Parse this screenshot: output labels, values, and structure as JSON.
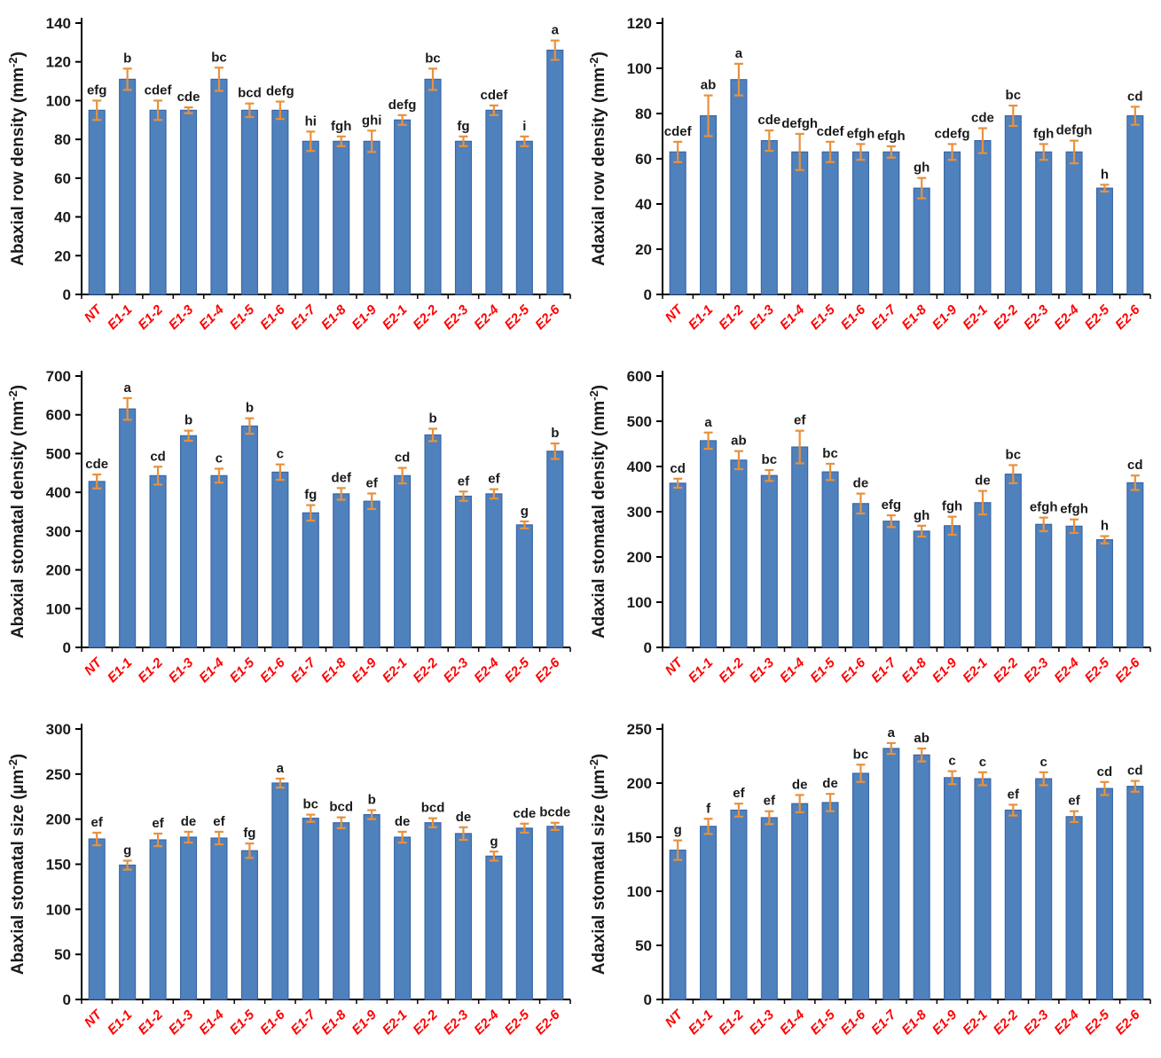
{
  "shared": {
    "categories": [
      "NT",
      "E1-1",
      "E1-2",
      "E1-3",
      "E1-4",
      "E1-5",
      "E1-6",
      "E1-7",
      "E1-8",
      "E1-9",
      "E2-1",
      "E2-2",
      "E2-3",
      "E2-4",
      "E2-5",
      "E2-6"
    ],
    "colors": {
      "bar_fill": "#4F81BD",
      "bar_edge": "#3A66A7",
      "error_bar": "#E8913C",
      "x_label": "#FF0000",
      "axis": "#000000",
      "text": "#1a1a1a"
    },
    "x_label_rotation_deg": -45,
    "grid": false,
    "legend": null
  },
  "chart_data": [
    {
      "type": "bar",
      "panel": "top-left",
      "ylabel": {
        "pre": "Abaxial row density (mm",
        "sup": "-2",
        "post": ")"
      },
      "ylim": [
        0,
        140
      ],
      "ytick_step": 20,
      "categories": [
        "NT",
        "E1-1",
        "E1-2",
        "E1-3",
        "E1-4",
        "E1-5",
        "E1-6",
        "E1-7",
        "E1-8",
        "E1-9",
        "E2-1",
        "E2-2",
        "E2-3",
        "E2-4",
        "E2-5",
        "E2-6"
      ],
      "values": [
        95,
        111,
        95,
        95,
        111,
        95,
        95,
        79,
        79,
        79,
        90,
        111,
        79,
        95,
        79,
        126
      ],
      "errors": [
        5,
        5.5,
        5,
        1.5,
        6,
        3.5,
        4.5,
        5,
        2.5,
        5.5,
        2.5,
        5.5,
        2.5,
        2.5,
        2.5,
        5
      ],
      "letters": [
        "efg",
        "b",
        "cdef",
        "cde",
        "bc",
        "bcd",
        "defg",
        "hi",
        "fgh",
        "ghi",
        "defg",
        "bc",
        "fg",
        "cdef",
        "i",
        "a"
      ]
    },
    {
      "type": "bar",
      "panel": "top-right",
      "ylabel": {
        "pre": "Adaxial row density (mm",
        "sup": "-2",
        "post": ")"
      },
      "ylim": [
        0,
        120
      ],
      "ytick_step": 20,
      "categories": [
        "NT",
        "E1-1",
        "E1-2",
        "E1-3",
        "E1-4",
        "E1-5",
        "E1-6",
        "E1-7",
        "E1-8",
        "E1-9",
        "E2-1",
        "E2-2",
        "E2-3",
        "E2-4",
        "E2-5",
        "E2-6"
      ],
      "values": [
        63,
        79,
        95,
        68,
        63,
        63,
        63,
        63,
        47,
        63,
        68,
        79,
        63,
        63,
        47,
        79
      ],
      "errors": [
        4.5,
        9,
        7,
        4.5,
        8,
        4.5,
        3.5,
        2.5,
        4.5,
        3.5,
        5.5,
        4.5,
        3.5,
        5,
        1.5,
        4
      ],
      "letters": [
        "cdef",
        "ab",
        "a",
        "cde",
        "defgh",
        "cdef",
        "efgh",
        "efgh",
        "gh",
        "cdefg",
        "cde",
        "bc",
        "fgh",
        "defgh",
        "h",
        "cd"
      ]
    },
    {
      "type": "bar",
      "panel": "middle-left",
      "ylabel": {
        "pre": "Abaxial stomatal density (mm",
        "sup": "-2",
        "post": ")"
      },
      "ylim": [
        0,
        700
      ],
      "ytick_step": 100,
      "categories": [
        "NT",
        "E1-1",
        "E1-2",
        "E1-3",
        "E1-4",
        "E1-5",
        "E1-6",
        "E1-7",
        "E1-8",
        "E1-9",
        "E2-1",
        "E2-2",
        "E2-3",
        "E2-4",
        "E2-5",
        "E2-6"
      ],
      "values": [
        428,
        615,
        443,
        546,
        443,
        571,
        452,
        347,
        396,
        377,
        443,
        548,
        390,
        396,
        316,
        506
      ],
      "errors": [
        18,
        28,
        23,
        13,
        18,
        20,
        20,
        20,
        15,
        20,
        20,
        16,
        12,
        12,
        9,
        20
      ],
      "letters": [
        "cde",
        "a",
        "cd",
        "b",
        "c",
        "b",
        "c",
        "fg",
        "def",
        "ef",
        "cd",
        "b",
        "ef",
        "ef",
        "g",
        "b"
      ]
    },
    {
      "type": "bar",
      "panel": "middle-right",
      "ylabel": {
        "pre": "Adaxial stomatal density (mm",
        "sup": "-2",
        "post": ")"
      },
      "ylim": [
        0,
        600
      ],
      "ytick_step": 100,
      "categories": [
        "NT",
        "E1-1",
        "E1-2",
        "E1-3",
        "E1-4",
        "E1-5",
        "E1-6",
        "E1-7",
        "E1-8",
        "E1-9",
        "E2-1",
        "E2-2",
        "E2-3",
        "E2-4",
        "E2-5",
        "E2-6"
      ],
      "values": [
        363,
        457,
        414,
        380,
        443,
        388,
        318,
        279,
        257,
        269,
        320,
        383,
        272,
        268,
        238,
        364
      ],
      "errors": [
        10,
        18,
        20,
        12,
        36,
        18,
        22,
        13,
        12,
        20,
        26,
        20,
        15,
        15,
        8,
        16
      ],
      "letters": [
        "cd",
        "a",
        "ab",
        "bc",
        "ef",
        "bc",
        "de",
        "efg",
        "gh",
        "fgh",
        "de",
        "bc",
        "efgh",
        "efgh",
        "h",
        "cd"
      ]
    },
    {
      "type": "bar",
      "panel": "bottom-left",
      "ylabel": {
        "pre": "Abaxial stomatal size (µm",
        "sup": "-2",
        "post": ")"
      },
      "ylim": [
        0,
        300
      ],
      "ytick_step": 50,
      "categories": [
        "NT",
        "E1-1",
        "E1-2",
        "E1-3",
        "E1-4",
        "E1-5",
        "E1-6",
        "E1-7",
        "E1-8",
        "E1-9",
        "E2-1",
        "E2-2",
        "E2-3",
        "E2-4",
        "E2-5",
        "E2-6"
      ],
      "values": [
        178,
        149,
        177,
        180,
        179,
        165,
        240,
        201,
        196,
        205,
        180,
        196,
        184,
        159,
        190,
        192
      ],
      "errors": [
        7,
        5,
        7,
        6,
        7,
        8,
        5,
        4,
        6,
        5,
        6,
        5,
        7,
        5,
        5,
        4
      ],
      "letters": [
        "ef",
        "g",
        "ef",
        "de",
        "ef",
        "fg",
        "a",
        "bc",
        "bcd",
        "b",
        "de",
        "bcd",
        "de",
        "g",
        "cde",
        "bcde"
      ]
    },
    {
      "type": "bar",
      "panel": "bottom-right",
      "ylabel": {
        "pre": "Adaxial stomatal size (µm",
        "sup": "-2",
        "post": ")"
      },
      "ylim": [
        0,
        250
      ],
      "ytick_step": 50,
      "categories": [
        "NT",
        "E1-1",
        "E1-2",
        "E1-3",
        "E1-4",
        "E1-5",
        "E1-6",
        "E1-7",
        "E1-8",
        "E1-9",
        "E2-1",
        "E2-2",
        "E2-3",
        "E2-4",
        "E2-5",
        "E2-6"
      ],
      "values": [
        138,
        160,
        175,
        168,
        181,
        182,
        209,
        232,
        226,
        205,
        204,
        175,
        204,
        169,
        195,
        197
      ],
      "errors": [
        9,
        7,
        6,
        6,
        8,
        8,
        8,
        5,
        6,
        6,
        6,
        5,
        6,
        5,
        6,
        5
      ],
      "letters": [
        "g",
        "f",
        "ef",
        "ef",
        "de",
        "de",
        "bc",
        "a",
        "ab",
        "c",
        "c",
        "ef",
        "c",
        "ef",
        "cd",
        "cd"
      ]
    }
  ]
}
